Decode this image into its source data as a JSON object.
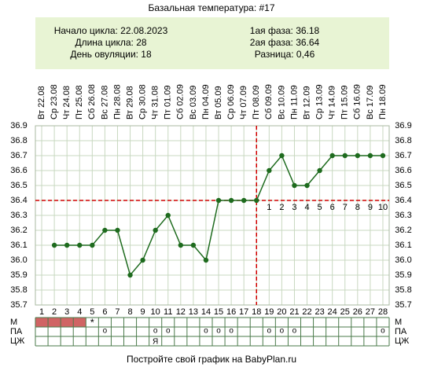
{
  "chart_data": {
    "type": "line",
    "title": "Базальная температура: #17",
    "info_left": [
      "Начало цикла: 22.08.2023",
      "Длина цикла: 28",
      "День овуляции: 18"
    ],
    "info_right": [
      "1ая фаза: 36.18",
      "2ая фаза: 36.64",
      "Разница: 0,46"
    ],
    "categories": [
      "Вт 22.08",
      "Ср 23.08",
      "Чт 24.08",
      "Пт 25.08",
      "Сб 26.08",
      "Вс 27.08",
      "Пн 28.08",
      "Вт 29.08",
      "Ср 30.08",
      "Чт 31.08",
      "Пт 01.09",
      "Сб 02.09",
      "Вс 03.09",
      "Пн 04.09",
      "Вт 05.09",
      "Ср 06.09",
      "Чт 07.09",
      "Пт 08.09",
      "Сб 09.09",
      "Вс 10.09",
      "Пн 11.09",
      "Вт 12.09",
      "Ср 13.09",
      "Чт 14.09",
      "Пт 15.09",
      "Сб 16.09",
      "Вс 17.09",
      "Пн 18.09"
    ],
    "x": [
      1,
      2,
      3,
      4,
      5,
      6,
      7,
      8,
      9,
      10,
      11,
      12,
      13,
      14,
      15,
      16,
      17,
      18,
      19,
      20,
      21,
      22,
      23,
      24,
      25,
      26,
      27,
      28
    ],
    "values": [
      null,
      36.1,
      36.1,
      36.1,
      36.1,
      36.2,
      36.2,
      35.9,
      36.0,
      36.2,
      36.3,
      36.1,
      36.1,
      36.0,
      36.4,
      36.4,
      36.4,
      36.4,
      36.6,
      36.7,
      36.5,
      36.5,
      36.6,
      36.7,
      36.7,
      36.7,
      36.7,
      36.7
    ],
    "color": "#1e6b1e",
    "xlim": [
      0.5,
      28.5
    ],
    "ylim": [
      35.7,
      36.9
    ],
    "yticks": [
      35.7,
      35.8,
      35.9,
      {
        "value": 36,
        "label": "36.0"
      },
      36.1,
      36.2,
      36.3,
      36.4,
      36.5,
      36.6,
      36.7,
      36.8,
      36.9
    ],
    "grid": true,
    "coverline": 36.4,
    "ovulation_day": 18,
    "phase_labels": [
      1,
      2,
      3,
      4,
      5,
      6,
      7,
      8,
      9,
      10
    ],
    "marker_color": "#d00000",
    "rows": [
      {
        "label": "М",
        "filled": [
          1,
          2,
          3,
          4
        ],
        "marks": [
          {
            "day": 5,
            "text": "*"
          }
        ]
      },
      {
        "label": "ПА",
        "marks": [
          {
            "day": 6,
            "text": "o"
          },
          {
            "day": 10,
            "text": "o"
          },
          {
            "day": 11,
            "text": "o"
          },
          {
            "day": 14,
            "text": "o"
          },
          {
            "day": 15,
            "text": "o"
          },
          {
            "day": 16,
            "text": "o"
          },
          {
            "day": 19,
            "text": "o"
          },
          {
            "day": 20,
            "text": "o"
          },
          {
            "day": 21,
            "text": "o"
          },
          {
            "day": 28,
            "text": "o"
          }
        ]
      },
      {
        "label": "ЦЖ",
        "marks": [
          {
            "day": 10,
            "text": "Я"
          }
        ]
      }
    ],
    "footer": "Постройте свой график на BabyPlan.ru"
  }
}
